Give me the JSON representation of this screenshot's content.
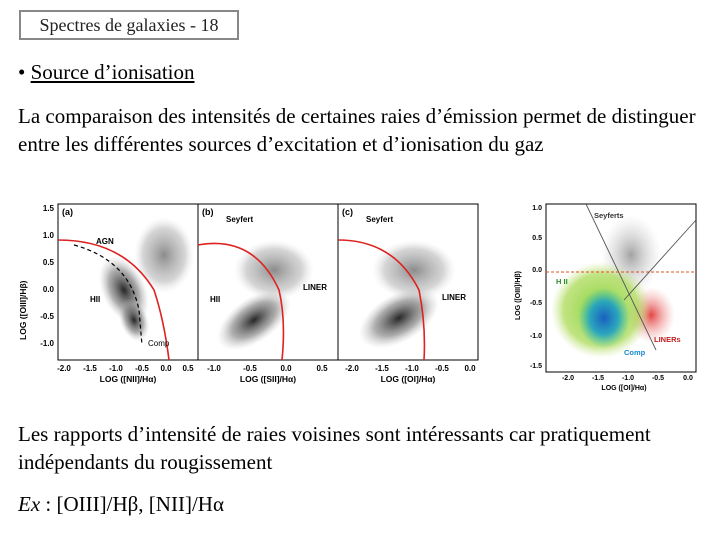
{
  "slide": {
    "title": "Spectres de galaxies - 18",
    "bullet_mark": "•",
    "bullet_text": "Source d’ionisation",
    "paragraph1": "La comparaison des intensités de certaines raies d’émission permet de distinguer entre les différentes sources d’excitation et d’ionisation du gaz",
    "paragraph2": "Les rapports d’intensité de raies voisines sont intéressants car pratiquement indépendants du rougissement",
    "example_label": "Ex",
    "example_text": " : [OIII]/Hβ, [NII]/Hα"
  },
  "figure_left": {
    "ylabel": "LOG ([OIII]/Hβ)",
    "yticks": [
      "1.5",
      "1.0",
      "0.5",
      "0.0",
      "-0.5",
      "-1.0"
    ],
    "panels": [
      {
        "tag": "(a)",
        "xlabel": "LOG ([NII]/Hα)",
        "xticks": [
          "-2.0",
          "-1.5",
          "-1.0",
          "-0.5",
          "0.0",
          "0.5"
        ],
        "labels": [
          "AGN",
          "HII",
          "Comp"
        ]
      },
      {
        "tag": "(b)",
        "xlabel": "LOG ([SII]/Hα)",
        "xticks": [
          "-1.0",
          "-0.5",
          "0.0",
          "0.5"
        ],
        "labels": [
          "Seyfert",
          "HII",
          "LINER"
        ]
      },
      {
        "tag": "(c)",
        "xlabel": "LOG ([OI]/Hα)",
        "xticks": [
          "-2.0",
          "-1.5",
          "-1.0",
          "-0.5",
          "0.0"
        ],
        "labels": [
          "Seyfert",
          "LINER"
        ]
      }
    ]
  },
  "figure_right": {
    "ylabel": "LOG ([OIII]/Hβ)",
    "xlabel": "LOG ([OI]/Hα)",
    "yticks": [
      "1.0",
      "0.5",
      "0.0",
      "-0.5",
      "-1.0",
      "-1.5"
    ],
    "xticks": [
      "-2.0",
      "-1.5",
      "-1.0",
      "-0.5",
      "0.0"
    ],
    "labels": [
      "Seyferts",
      "H II",
      "LINERs",
      "Comp"
    ],
    "colors": {
      "hii": "#8ccf3c",
      "core": "#1e88c8",
      "seyfert": "#b8b8b8",
      "liner": "#e84a4a",
      "comp": "#2aa0e0"
    }
  }
}
